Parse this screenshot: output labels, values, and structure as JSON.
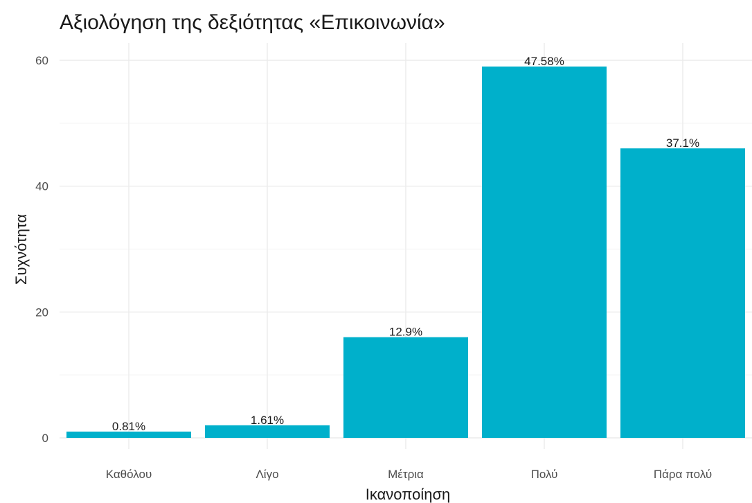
{
  "chart_data": {
    "type": "bar",
    "title": "Αξιολόγηση της δεξιότητας «Επικοινωνία»",
    "xlabel": "Ικανοποίηση",
    "ylabel": "Συχνότητα",
    "categories": [
      "Καθόλου",
      "Λίγο",
      "Μέτρια",
      "Πολύ",
      "Πάρα πολύ"
    ],
    "values": [
      1,
      2,
      16,
      59,
      46
    ],
    "data_labels": [
      "0.81%",
      "1.61%",
      "12.9%",
      "47.58%",
      "37.1%"
    ],
    "ylim": [
      0,
      62
    ],
    "y_ticks": [
      0,
      20,
      40,
      60
    ],
    "y_minor_ticks": [
      10,
      30,
      50
    ],
    "grid": true,
    "legend": "none",
    "bar_color": "#00b0cb"
  }
}
